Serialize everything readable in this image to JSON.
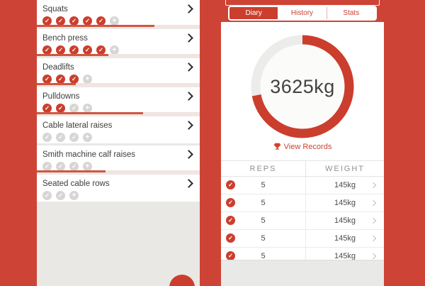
{
  "colors": {
    "background": "#cd4437",
    "accent": "#cb3e2d",
    "progress_fill": "#d25640",
    "dot_gray": "#d7d6d4",
    "ring_track": "#ececea"
  },
  "left_screen": {
    "exercises": [
      {
        "name": "Squats",
        "dots": [
          "done",
          "done",
          "done",
          "done",
          "done",
          "add"
        ],
        "progress": 72
      },
      {
        "name": "Bench press",
        "dots": [
          "done",
          "done",
          "done",
          "done",
          "done",
          "add"
        ],
        "progress": 44
      },
      {
        "name": "Deadlifts",
        "dots": [
          "done",
          "done",
          "done",
          "add"
        ],
        "progress": 24
      },
      {
        "name": "Pulldowns",
        "dots": [
          "done",
          "done",
          "pending",
          "add"
        ],
        "progress": 65
      },
      {
        "name": "Cable lateral raises",
        "dots": [
          "pending",
          "pending",
          "pending",
          "add"
        ],
        "progress": null
      },
      {
        "name": "Smith machine calf raises",
        "dots": [
          "pending",
          "pending",
          "pending",
          "add"
        ],
        "progress": 42
      },
      {
        "name": "Seated cable rows",
        "dots": [
          "pending",
          "pending",
          "add"
        ],
        "progress": null
      }
    ]
  },
  "right_screen": {
    "tabs": [
      {
        "label": "Diary",
        "selected": true
      },
      {
        "label": "History",
        "selected": false
      },
      {
        "label": "Stats",
        "selected": false
      }
    ],
    "gauge": {
      "value": "3625kg",
      "fraction": 0.72
    },
    "view_records": {
      "label": "View Records"
    },
    "table": {
      "headers": [
        "REPS",
        "WEIGHT"
      ],
      "rows": [
        {
          "reps": "5",
          "weight": "145kg"
        },
        {
          "reps": "5",
          "weight": "145kg"
        },
        {
          "reps": "5",
          "weight": "145kg"
        },
        {
          "reps": "5",
          "weight": "145kg"
        },
        {
          "reps": "5",
          "weight": "145kg"
        }
      ]
    }
  }
}
